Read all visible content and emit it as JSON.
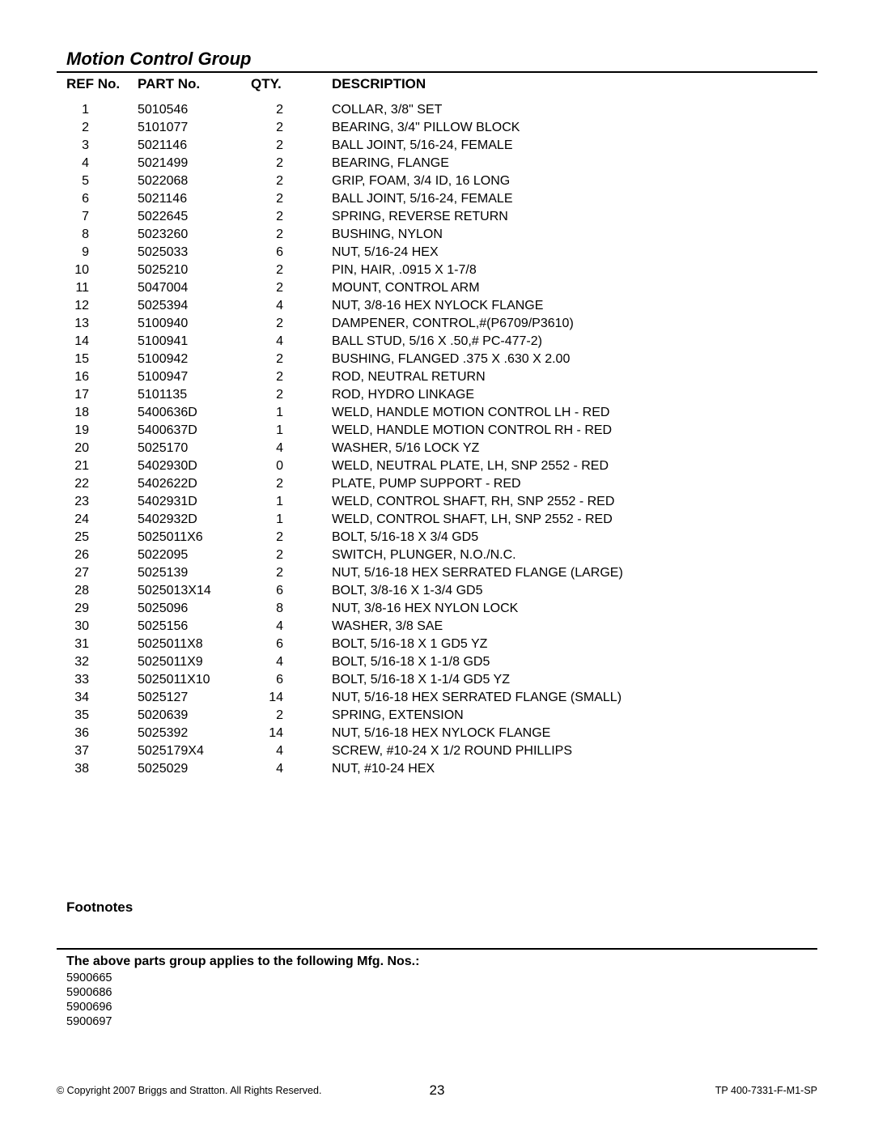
{
  "title": "Motion Control Group",
  "columns": {
    "ref": "REF No.",
    "part": "PART No.",
    "qty": "QTY.",
    "desc": "DESCRIPTION"
  },
  "rows": [
    {
      "ref": "1",
      "part": "5010546",
      "qty": "2",
      "desc": "COLLAR, 3/8\" SET"
    },
    {
      "ref": "2",
      "part": "5101077",
      "qty": "2",
      "desc": "BEARING, 3/4\" PILLOW BLOCK"
    },
    {
      "ref": "3",
      "part": "5021146",
      "qty": "2",
      "desc": "BALL JOINT, 5/16-24, FEMALE"
    },
    {
      "ref": "4",
      "part": "5021499",
      "qty": "2",
      "desc": "BEARING, FLANGE"
    },
    {
      "ref": "5",
      "part": "5022068",
      "qty": "2",
      "desc": "GRIP, FOAM, 3/4 ID, 16 LONG"
    },
    {
      "ref": "6",
      "part": "5021146",
      "qty": "2",
      "desc": "BALL JOINT, 5/16-24, FEMALE"
    },
    {
      "ref": "7",
      "part": "5022645",
      "qty": "2",
      "desc": "SPRING, REVERSE RETURN"
    },
    {
      "ref": "8",
      "part": "5023260",
      "qty": "2",
      "desc": "BUSHING, NYLON"
    },
    {
      "ref": "9",
      "part": "5025033",
      "qty": "6",
      "desc": "NUT, 5/16-24 HEX"
    },
    {
      "ref": "10",
      "part": "5025210",
      "qty": "2",
      "desc": "PIN, HAIR, .0915 X 1-7/8"
    },
    {
      "ref": "11",
      "part": "5047004",
      "qty": "2",
      "desc": "MOUNT, CONTROL ARM"
    },
    {
      "ref": "12",
      "part": "5025394",
      "qty": "4",
      "desc": "NUT, 3/8-16 HEX NYLOCK FLANGE"
    },
    {
      "ref": "13",
      "part": "5100940",
      "qty": "2",
      "desc": "DAMPENER, CONTROL,#(P6709/P3610)"
    },
    {
      "ref": "14",
      "part": "5100941",
      "qty": "4",
      "desc": "BALL STUD, 5/16 X .50,# PC-477-2)"
    },
    {
      "ref": "15",
      "part": "5100942",
      "qty": "2",
      "desc": "BUSHING, FLANGED .375 X .630 X 2.00"
    },
    {
      "ref": "16",
      "part": "5100947",
      "qty": "2",
      "desc": "ROD, NEUTRAL RETURN"
    },
    {
      "ref": "17",
      "part": "5101135",
      "qty": "2",
      "desc": "ROD, HYDRO LINKAGE"
    },
    {
      "ref": "18",
      "part": "5400636D",
      "qty": "1",
      "desc": "WELD, HANDLE MOTION CONTROL LH - RED"
    },
    {
      "ref": "19",
      "part": "5400637D",
      "qty": "1",
      "desc": "WELD, HANDLE MOTION CONTROL RH - RED"
    },
    {
      "ref": "20",
      "part": "5025170",
      "qty": "4",
      "desc": "WASHER, 5/16 LOCK YZ"
    },
    {
      "ref": "21",
      "part": "5402930D",
      "qty": "0",
      "desc": "WELD, NEUTRAL PLATE, LH, SNP 2552 - RED"
    },
    {
      "ref": "22",
      "part": "5402622D",
      "qty": "2",
      "desc": "PLATE, PUMP SUPPORT - RED"
    },
    {
      "ref": "23",
      "part": "5402931D",
      "qty": "1",
      "desc": "WELD, CONTROL SHAFT, RH, SNP 2552 - RED"
    },
    {
      "ref": "24",
      "part": "5402932D",
      "qty": "1",
      "desc": "WELD, CONTROL SHAFT, LH, SNP 2552 - RED"
    },
    {
      "ref": "25",
      "part": "5025011X6",
      "qty": "2",
      "desc": "BOLT, 5/16-18 X 3/4 GD5"
    },
    {
      "ref": "26",
      "part": "5022095",
      "qty": "2",
      "desc": "SWITCH, PLUNGER, N.O./N.C."
    },
    {
      "ref": "27",
      "part": "5025139",
      "qty": "2",
      "desc": "NUT, 5/16-18 HEX SERRATED FLANGE (LARGE)"
    },
    {
      "ref": "28",
      "part": "5025013X14",
      "qty": "6",
      "desc": "BOLT, 3/8-16 X 1-3/4 GD5"
    },
    {
      "ref": "29",
      "part": "5025096",
      "qty": "8",
      "desc": "NUT, 3/8-16 HEX NYLON LOCK"
    },
    {
      "ref": "30",
      "part": "5025156",
      "qty": "4",
      "desc": "WASHER, 3/8 SAE"
    },
    {
      "ref": "31",
      "part": "5025011X8",
      "qty": "6",
      "desc": "BOLT, 5/16-18 X 1 GD5 YZ"
    },
    {
      "ref": "32",
      "part": "5025011X9",
      "qty": "4",
      "desc": "BOLT, 5/16-18 X 1-1/8 GD5"
    },
    {
      "ref": "33",
      "part": "5025011X10",
      "qty": "6",
      "desc": "BOLT, 5/16-18 X 1-1/4 GD5 YZ"
    },
    {
      "ref": "34",
      "part": "5025127",
      "qty": "14",
      "desc": "NUT, 5/16-18 HEX SERRATED FLANGE (SMALL)"
    },
    {
      "ref": "35",
      "part": "5020639",
      "qty": "2",
      "desc": "SPRING, EXTENSION"
    },
    {
      "ref": "36",
      "part": "5025392",
      "qty": "14",
      "desc": "NUT, 5/16-18 HEX NYLOCK FLANGE"
    },
    {
      "ref": "37",
      "part": "5025179X4",
      "qty": "4",
      "desc": "SCREW, #10-24 X 1/2 ROUND PHILLIPS"
    },
    {
      "ref": "38",
      "part": "5025029",
      "qty": "4",
      "desc": "NUT, #10-24 HEX"
    }
  ],
  "footnotes_heading": "Footnotes",
  "mfg_heading": "The above parts group applies to the following Mfg. Nos.:",
  "mfg_nos": [
    "5900665",
    "5900686",
    "5900696",
    "5900697"
  ],
  "footer": {
    "copyright": "© Copyright  2007 Briggs and Stratton. All Rights Reserved.",
    "page_no": "23",
    "doc_no": "TP 400-7331-F-M1-SP"
  }
}
